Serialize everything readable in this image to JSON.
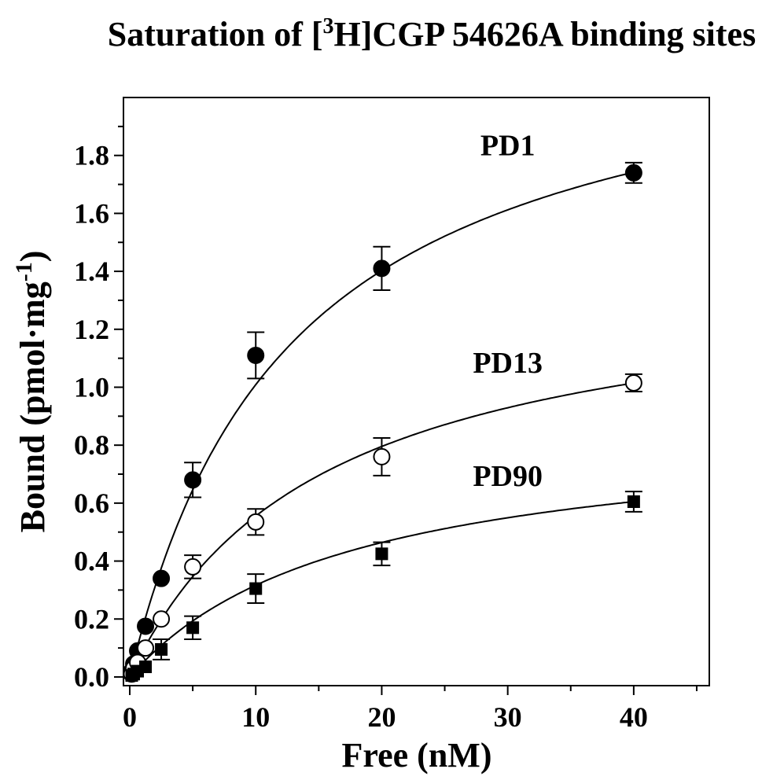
{
  "chart_data": {
    "type": "scatter",
    "title": {
      "pre": "Saturation of [",
      "sup": "3",
      "post": "H]CGP 54626A binding sites"
    },
    "xlabel": "Free (nM)",
    "ylabel": {
      "main": "Bound (pmol·mg",
      "sup": "-1",
      "close": ")"
    },
    "xlim": [
      -0.5,
      46
    ],
    "ylim": [
      -0.03,
      2.0
    ],
    "x_ticks": [
      0,
      10,
      20,
      30,
      40
    ],
    "x_tick_labels": [
      "0",
      "10",
      "20",
      "30",
      "40"
    ],
    "x_minor_ticks": [
      5,
      15,
      25,
      35,
      45
    ],
    "y_ticks": [
      0.0,
      0.2,
      0.4,
      0.6,
      0.8,
      1.0,
      1.2,
      1.4,
      1.6,
      1.8
    ],
    "y_tick_labels": [
      "0.0",
      "0.2",
      "0.4",
      "0.6",
      "0.8",
      "1.0",
      "1.2",
      "1.4",
      "1.6",
      "1.8"
    ],
    "y_minor_ticks": [
      0.1,
      0.3,
      0.5,
      0.7,
      0.9,
      1.1,
      1.3,
      1.5,
      1.7,
      1.9
    ],
    "grid": false,
    "legend": "none",
    "series": [
      {
        "name": "PD1",
        "marker": "filled-circle",
        "x": [
          0.156,
          0.3125,
          0.625,
          1.25,
          2.5,
          5,
          10,
          20,
          40
        ],
        "y": [
          0.02,
          0.045,
          0.09,
          0.175,
          0.34,
          0.68,
          1.11,
          1.41,
          1.74
        ],
        "error": [
          0,
          0,
          0,
          0,
          0,
          0.06,
          0.08,
          0.075,
          0.035
        ],
        "fit": {
          "bmax": 2.3,
          "kd": 12.8
        },
        "label_at": [
          30,
          1.8
        ]
      },
      {
        "name": "PD13",
        "marker": "open-circle",
        "x": [
          0.156,
          0.3125,
          0.625,
          1.25,
          2.5,
          5,
          10,
          20,
          40
        ],
        "y": [
          0.01,
          0.03,
          0.05,
          0.1,
          0.2,
          0.38,
          0.535,
          0.76,
          1.015
        ],
        "error": [
          0,
          0,
          0,
          0,
          0,
          0.04,
          0.045,
          0.065,
          0.03
        ],
        "fit": {
          "bmax": 1.4,
          "kd": 15.2
        },
        "label_at": [
          30,
          1.05
        ]
      },
      {
        "name": "PD90",
        "marker": "filled-square",
        "x": [
          0.156,
          0.3125,
          0.625,
          1.25,
          2.5,
          5,
          10,
          20,
          40
        ],
        "y": [
          0.005,
          0.01,
          0.02,
          0.035,
          0.095,
          0.17,
          0.305,
          0.425,
          0.605
        ],
        "error": [
          0,
          0,
          0,
          0,
          0.035,
          0.04,
          0.05,
          0.04,
          0.035
        ],
        "fit": {
          "bmax": 0.87,
          "kd": 17.5
        },
        "label_at": [
          30,
          0.66
        ]
      }
    ]
  }
}
